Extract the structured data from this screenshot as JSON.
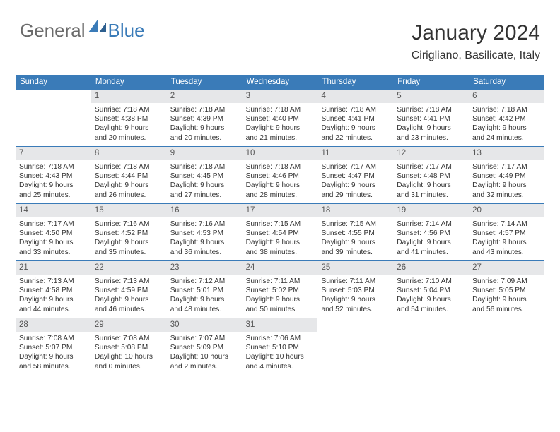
{
  "logo": {
    "text1": "General",
    "text2": "Blue"
  },
  "title": "January 2024",
  "location": "Cirigliano, Basilicate, Italy",
  "colors": {
    "brand_blue": "#3a7bb8",
    "day_header_bg": "#e6e7e9",
    "text": "#333333",
    "logo_gray": "#6b6b6b"
  },
  "weekdays": [
    "Sunday",
    "Monday",
    "Tuesday",
    "Wednesday",
    "Thursday",
    "Friday",
    "Saturday"
  ],
  "weeks": [
    [
      {
        "num": "",
        "lines": []
      },
      {
        "num": "1",
        "lines": [
          "Sunrise: 7:18 AM",
          "Sunset: 4:38 PM",
          "Daylight: 9 hours",
          "and 20 minutes."
        ]
      },
      {
        "num": "2",
        "lines": [
          "Sunrise: 7:18 AM",
          "Sunset: 4:39 PM",
          "Daylight: 9 hours",
          "and 20 minutes."
        ]
      },
      {
        "num": "3",
        "lines": [
          "Sunrise: 7:18 AM",
          "Sunset: 4:40 PM",
          "Daylight: 9 hours",
          "and 21 minutes."
        ]
      },
      {
        "num": "4",
        "lines": [
          "Sunrise: 7:18 AM",
          "Sunset: 4:41 PM",
          "Daylight: 9 hours",
          "and 22 minutes."
        ]
      },
      {
        "num": "5",
        "lines": [
          "Sunrise: 7:18 AM",
          "Sunset: 4:41 PM",
          "Daylight: 9 hours",
          "and 23 minutes."
        ]
      },
      {
        "num": "6",
        "lines": [
          "Sunrise: 7:18 AM",
          "Sunset: 4:42 PM",
          "Daylight: 9 hours",
          "and 24 minutes."
        ]
      }
    ],
    [
      {
        "num": "7",
        "lines": [
          "Sunrise: 7:18 AM",
          "Sunset: 4:43 PM",
          "Daylight: 9 hours",
          "and 25 minutes."
        ]
      },
      {
        "num": "8",
        "lines": [
          "Sunrise: 7:18 AM",
          "Sunset: 4:44 PM",
          "Daylight: 9 hours",
          "and 26 minutes."
        ]
      },
      {
        "num": "9",
        "lines": [
          "Sunrise: 7:18 AM",
          "Sunset: 4:45 PM",
          "Daylight: 9 hours",
          "and 27 minutes."
        ]
      },
      {
        "num": "10",
        "lines": [
          "Sunrise: 7:18 AM",
          "Sunset: 4:46 PM",
          "Daylight: 9 hours",
          "and 28 minutes."
        ]
      },
      {
        "num": "11",
        "lines": [
          "Sunrise: 7:17 AM",
          "Sunset: 4:47 PM",
          "Daylight: 9 hours",
          "and 29 minutes."
        ]
      },
      {
        "num": "12",
        "lines": [
          "Sunrise: 7:17 AM",
          "Sunset: 4:48 PM",
          "Daylight: 9 hours",
          "and 31 minutes."
        ]
      },
      {
        "num": "13",
        "lines": [
          "Sunrise: 7:17 AM",
          "Sunset: 4:49 PM",
          "Daylight: 9 hours",
          "and 32 minutes."
        ]
      }
    ],
    [
      {
        "num": "14",
        "lines": [
          "Sunrise: 7:17 AM",
          "Sunset: 4:50 PM",
          "Daylight: 9 hours",
          "and 33 minutes."
        ]
      },
      {
        "num": "15",
        "lines": [
          "Sunrise: 7:16 AM",
          "Sunset: 4:52 PM",
          "Daylight: 9 hours",
          "and 35 minutes."
        ]
      },
      {
        "num": "16",
        "lines": [
          "Sunrise: 7:16 AM",
          "Sunset: 4:53 PM",
          "Daylight: 9 hours",
          "and 36 minutes."
        ]
      },
      {
        "num": "17",
        "lines": [
          "Sunrise: 7:15 AM",
          "Sunset: 4:54 PM",
          "Daylight: 9 hours",
          "and 38 minutes."
        ]
      },
      {
        "num": "18",
        "lines": [
          "Sunrise: 7:15 AM",
          "Sunset: 4:55 PM",
          "Daylight: 9 hours",
          "and 39 minutes."
        ]
      },
      {
        "num": "19",
        "lines": [
          "Sunrise: 7:14 AM",
          "Sunset: 4:56 PM",
          "Daylight: 9 hours",
          "and 41 minutes."
        ]
      },
      {
        "num": "20",
        "lines": [
          "Sunrise: 7:14 AM",
          "Sunset: 4:57 PM",
          "Daylight: 9 hours",
          "and 43 minutes."
        ]
      }
    ],
    [
      {
        "num": "21",
        "lines": [
          "Sunrise: 7:13 AM",
          "Sunset: 4:58 PM",
          "Daylight: 9 hours",
          "and 44 minutes."
        ]
      },
      {
        "num": "22",
        "lines": [
          "Sunrise: 7:13 AM",
          "Sunset: 4:59 PM",
          "Daylight: 9 hours",
          "and 46 minutes."
        ]
      },
      {
        "num": "23",
        "lines": [
          "Sunrise: 7:12 AM",
          "Sunset: 5:01 PM",
          "Daylight: 9 hours",
          "and 48 minutes."
        ]
      },
      {
        "num": "24",
        "lines": [
          "Sunrise: 7:11 AM",
          "Sunset: 5:02 PM",
          "Daylight: 9 hours",
          "and 50 minutes."
        ]
      },
      {
        "num": "25",
        "lines": [
          "Sunrise: 7:11 AM",
          "Sunset: 5:03 PM",
          "Daylight: 9 hours",
          "and 52 minutes."
        ]
      },
      {
        "num": "26",
        "lines": [
          "Sunrise: 7:10 AM",
          "Sunset: 5:04 PM",
          "Daylight: 9 hours",
          "and 54 minutes."
        ]
      },
      {
        "num": "27",
        "lines": [
          "Sunrise: 7:09 AM",
          "Sunset: 5:05 PM",
          "Daylight: 9 hours",
          "and 56 minutes."
        ]
      }
    ],
    [
      {
        "num": "28",
        "lines": [
          "Sunrise: 7:08 AM",
          "Sunset: 5:07 PM",
          "Daylight: 9 hours",
          "and 58 minutes."
        ]
      },
      {
        "num": "29",
        "lines": [
          "Sunrise: 7:08 AM",
          "Sunset: 5:08 PM",
          "Daylight: 10 hours",
          "and 0 minutes."
        ]
      },
      {
        "num": "30",
        "lines": [
          "Sunrise: 7:07 AM",
          "Sunset: 5:09 PM",
          "Daylight: 10 hours",
          "and 2 minutes."
        ]
      },
      {
        "num": "31",
        "lines": [
          "Sunrise: 7:06 AM",
          "Sunset: 5:10 PM",
          "Daylight: 10 hours",
          "and 4 minutes."
        ]
      },
      {
        "num": "",
        "lines": []
      },
      {
        "num": "",
        "lines": []
      },
      {
        "num": "",
        "lines": []
      }
    ]
  ]
}
